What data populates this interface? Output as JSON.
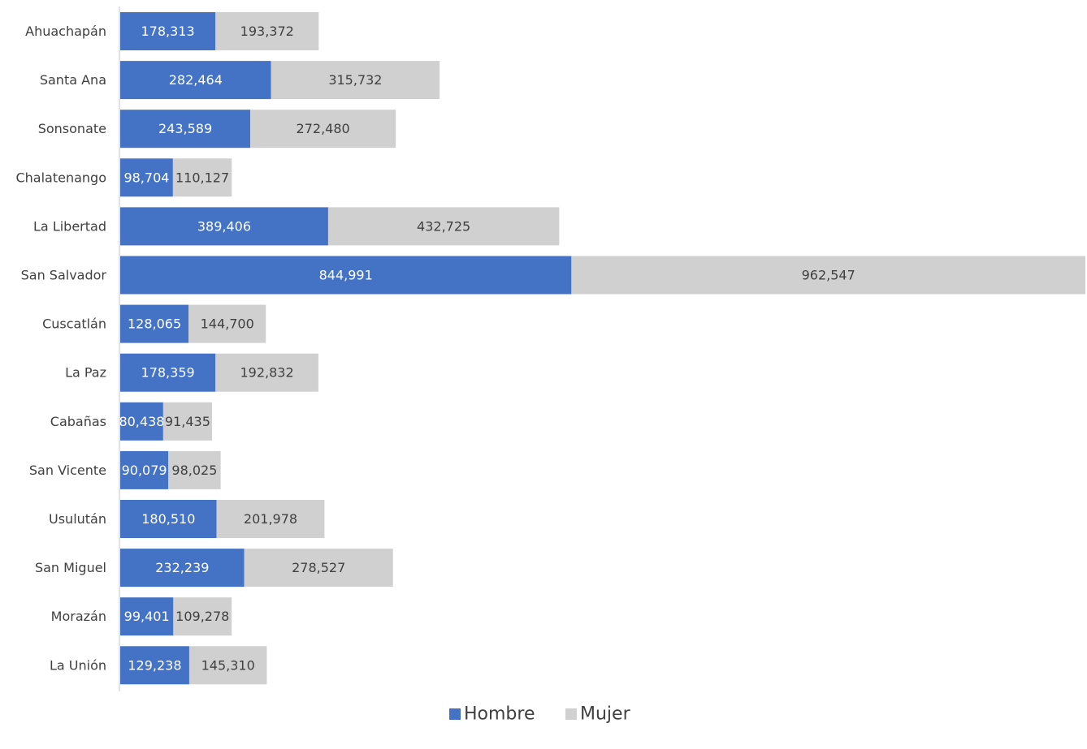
{
  "chart_data": {
    "type": "bar",
    "orientation": "horizontal",
    "stacked": true,
    "title": "",
    "xlabel": "",
    "ylabel": "",
    "categories": [
      "Ahuachapán",
      "Santa Ana",
      "Sonsonate",
      "Chalatenango",
      "La Libertad",
      "San Salvador",
      "Cuscatlán",
      "La Paz",
      "Cabañas",
      "San Vicente",
      "Usulután",
      "San Miguel",
      "Morazán",
      "La Unión"
    ],
    "series": [
      {
        "name": "Hombre",
        "color": "#4472C4",
        "label_color": "#ffffff",
        "values": [
          178313,
          282464,
          243589,
          98704,
          389406,
          844991,
          128065,
          178359,
          80438,
          90079,
          180510,
          232239,
          99401,
          129238
        ],
        "labels": [
          "178,313",
          "282,464",
          "243,589",
          "98,704",
          "389,406",
          "844,991",
          "128,065",
          "178,359",
          "80,438",
          "90,079",
          "180,510",
          "232,239",
          "99,401",
          "129,238"
        ]
      },
      {
        "name": "Mujer",
        "color": "#D0D0D0",
        "label_color": "#404040",
        "values": [
          193372,
          315732,
          272480,
          110127,
          432725,
          962547,
          144700,
          192832,
          91435,
          98025,
          201978,
          278527,
          109278,
          145310
        ],
        "labels": [
          "193,372",
          "315,732",
          "272,480",
          "110,127",
          "432,725",
          "962,547",
          "144,700",
          "192,832",
          "91,435",
          "98,025",
          "201,978",
          "278,527",
          "109,278",
          "145,310"
        ]
      }
    ],
    "grid": false,
    "legend_position": "bottom"
  }
}
